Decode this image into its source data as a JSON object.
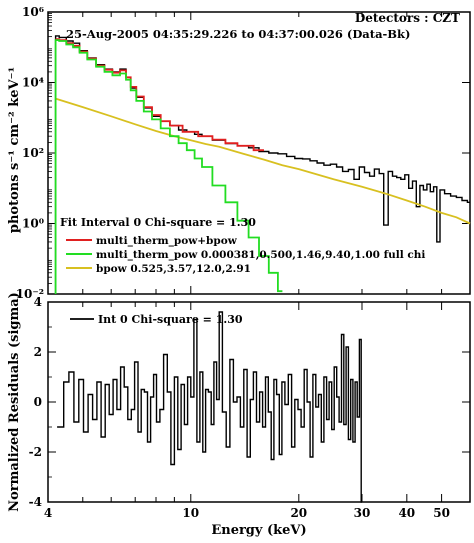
{
  "chart_data": [
    {
      "type": "line",
      "header_left": "25-Aug-2005 04:35:29.226 to 04:37:00.026 (Data-Bk)",
      "header_right": "Detectors : CZT",
      "ylabel": "photons s⁻¹ cm⁻² keV⁻¹",
      "x_scale": "log",
      "y_scale": "log",
      "xlim": [
        4,
        60
      ],
      "ylim": [
        0.01,
        1000000
      ],
      "y_ticks": [
        {
          "value": 0.01,
          "label": "10⁻²"
        },
        {
          "value": 1,
          "label": "10⁰"
        },
        {
          "value": 100,
          "label": "10²"
        },
        {
          "value": 10000,
          "label": "10⁴"
        },
        {
          "value": 1000000,
          "label": "10⁶"
        }
      ],
      "legend": {
        "placement": "bottom-left",
        "title": "Fit Interval 0   Chi-square = 1.30",
        "entries": [
          {
            "label": "multi_therm_pow+bpow",
            "color": "#e02020"
          },
          {
            "label": "multi_therm_pow 0.000381,0.500,1.46,9.40,1.00  full chi",
            "color": "#22dd22"
          },
          {
            "label": "bpow 0.525,3.57,12.0,2.91",
            "color": "#d8c020"
          }
        ]
      },
      "series": [
        {
          "role": "data",
          "color": "#000000",
          "x": [
            4.2,
            4.4,
            4.6,
            4.8,
            5.0,
            5.3,
            5.6,
            5.9,
            6.2,
            6.5,
            6.7,
            6.9,
            7.2,
            7.6,
            8.0,
            8.5,
            9.0,
            9.5,
            10,
            10.5,
            11,
            12,
            13,
            14,
            15,
            16,
            17,
            18,
            19,
            20,
            21,
            22,
            23,
            24,
            25,
            26,
            27,
            28,
            29,
            30,
            31,
            32,
            33,
            34,
            35,
            36,
            37,
            38,
            39,
            40,
            41,
            42,
            43,
            44,
            45,
            46,
            47,
            48,
            49,
            50,
            52,
            54,
            56,
            58,
            60
          ],
          "values": [
            210000,
            190000,
            150000,
            130000,
            80000,
            50000,
            32000,
            24000,
            20000,
            24000,
            14000,
            7000,
            3800,
            1900,
            1100,
            800,
            600,
            450,
            400,
            340,
            300,
            230,
            185,
            160,
            140,
            110,
            100,
            95,
            80,
            70,
            68,
            60,
            52,
            45,
            48,
            40,
            30,
            34,
            18,
            40,
            28,
            22,
            35,
            26,
            0.9,
            30,
            22,
            20,
            18,
            24,
            10,
            16,
            3,
            12,
            9,
            13,
            8,
            11,
            0.3,
            9,
            7,
            6,
            5.5,
            4.5,
            4
          ]
        },
        {
          "name": "multi_therm_pow+bpow",
          "color": "#e02020",
          "x": [
            4.2,
            4.4,
            4.6,
            4.8,
            5.0,
            5.3,
            5.6,
            5.9,
            6.2,
            6.5,
            6.7,
            6.9,
            7.2,
            7.6,
            8.0,
            8.5,
            9.0,
            10,
            11,
            12,
            13,
            14,
            16
          ],
          "values": [
            170000,
            160000,
            130000,
            110000,
            75000,
            48000,
            30000,
            23000,
            19000,
            22000,
            14000,
            7500,
            4000,
            2000,
            1200,
            800,
            600,
            400,
            300,
            240,
            190,
            160,
            120
          ]
        },
        {
          "name": "multi_therm_pow",
          "color": "#22dd22",
          "x": [
            4.2,
            4.4,
            4.6,
            4.8,
            5.0,
            5.3,
            5.6,
            5.9,
            6.2,
            6.5,
            6.7,
            6.9,
            7.2,
            7.6,
            8.0,
            8.5,
            9.0,
            9.5,
            10,
            10.5,
            11,
            12,
            13,
            14,
            15,
            16,
            17,
            18
          ],
          "values": [
            160000,
            150000,
            120000,
            100000,
            70000,
            45000,
            28000,
            20000,
            16000,
            18000,
            12000,
            6000,
            3000,
            1500,
            900,
            500,
            300,
            190,
            120,
            70,
            40,
            12,
            4,
            1.2,
            0.4,
            0.12,
            0.04,
            0.012
          ]
        },
        {
          "name": "bpow",
          "color": "#d8c020",
          "x": [
            4.2,
            5,
            6,
            7,
            8,
            9,
            10,
            11,
            12,
            14,
            16,
            18,
            20,
            25,
            30,
            35,
            40,
            45,
            50,
            55,
            60
          ],
          "values": [
            3500,
            2000,
            1100,
            650,
            420,
            300,
            230,
            180,
            150,
            95,
            65,
            45,
            35,
            18,
            11,
            7,
            4.5,
            3,
            2,
            1.5,
            1
          ]
        }
      ]
    },
    {
      "type": "line",
      "xlabel": "Energy (keV)",
      "ylabel": "Normalized Residuals (sigma)",
      "x_scale": "log",
      "xlim": [
        4,
        60
      ],
      "ylim": [
        -4,
        4
      ],
      "x_ticks": [
        {
          "value": 4,
          "label": "4"
        },
        {
          "value": 10,
          "label": "10"
        },
        {
          "value": 20,
          "label": "20"
        },
        {
          "value": 30,
          "label": "30"
        },
        {
          "value": 40,
          "label": "40"
        },
        {
          "value": 50,
          "label": "50"
        }
      ],
      "y_ticks": [
        {
          "value": 4,
          "label": "4"
        },
        {
          "value": 2,
          "label": "2"
        },
        {
          "value": 0,
          "label": "0"
        },
        {
          "value": -2,
          "label": "-2"
        },
        {
          "value": -4,
          "label": "-4"
        }
      ],
      "legend": {
        "placement": "top-left",
        "entries": [
          {
            "label": "Int 0  Chi-square = 1.30",
            "color": "#000000"
          }
        ]
      },
      "series": [
        {
          "name": "Int 0",
          "color": "#000000",
          "x": [
            4.35,
            4.5,
            4.65,
            4.8,
            4.95,
            5.1,
            5.25,
            5.4,
            5.55,
            5.7,
            5.85,
            6.0,
            6.15,
            6.3,
            6.45,
            6.6,
            6.75,
            6.9,
            7.05,
            7.2,
            7.35,
            7.5,
            7.65,
            7.8,
            7.95,
            8.1,
            8.3,
            8.5,
            8.7,
            8.9,
            9.1,
            9.3,
            9.5,
            9.7,
            9.9,
            10.1,
            10.3,
            10.5,
            10.7,
            10.9,
            11.1,
            11.3,
            11.5,
            11.7,
            11.9,
            12.1,
            12.4,
            12.7,
            13.0,
            13.3,
            13.6,
            13.9,
            14.2,
            14.5,
            14.8,
            15.1,
            15.4,
            15.7,
            16.0,
            16.3,
            16.6,
            16.9,
            17.2,
            17.5,
            17.8,
            18.1,
            18.5,
            18.9,
            19.3,
            19.7,
            20.1,
            20.5,
            20.9,
            21.3,
            21.7,
            22.1,
            22.5,
            22.9,
            23.3,
            23.7,
            24.1,
            24.5,
            24.9,
            25.3,
            25.7,
            26.1,
            26.5,
            26.9,
            27.3,
            27.7,
            28.1,
            28.5,
            28.9,
            29.3,
            29.7,
            30.0
          ],
          "values": [
            -1.0,
            0.8,
            1.2,
            -0.8,
            0.9,
            -1.2,
            0.3,
            -0.7,
            0.8,
            -1.4,
            0.7,
            -0.5,
            0.9,
            -0.3,
            1.4,
            0.6,
            -0.7,
            -0.3,
            1.6,
            -1.2,
            0.5,
            0.4,
            -1.6,
            0.2,
            1.1,
            -0.8,
            -0.3,
            1.9,
            0.4,
            -2.5,
            1.0,
            -1.9,
            0.7,
            -0.9,
            1.0,
            0.2,
            3.3,
            -1.6,
            1.2,
            -2.0,
            0.5,
            0.4,
            -0.9,
            1.6,
            0.1,
            3.6,
            -0.4,
            -1.8,
            1.7,
            0.0,
            0.2,
            -1.0,
            1.3,
            -2.2,
            0.1,
            1.2,
            -0.8,
            0.4,
            -1.0,
            1.0,
            -0.4,
            -2.3,
            0.9,
            0.3,
            -2.1,
            0.8,
            -0.1,
            1.1,
            -1.8,
            0.1,
            -0.3,
            -1.0,
            1.3,
            0.0,
            -2.2,
            1.1,
            -0.2,
            0.3,
            -1.6,
            1.0,
            -0.7,
            0.8,
            -1.1,
            1.4,
            0.2,
            -0.8,
            2.7,
            -0.9,
            2.2,
            -1.5,
            0.9,
            -1.6,
            0.8,
            -0.6,
            2.5,
            -4.0
          ]
        }
      ]
    }
  ]
}
